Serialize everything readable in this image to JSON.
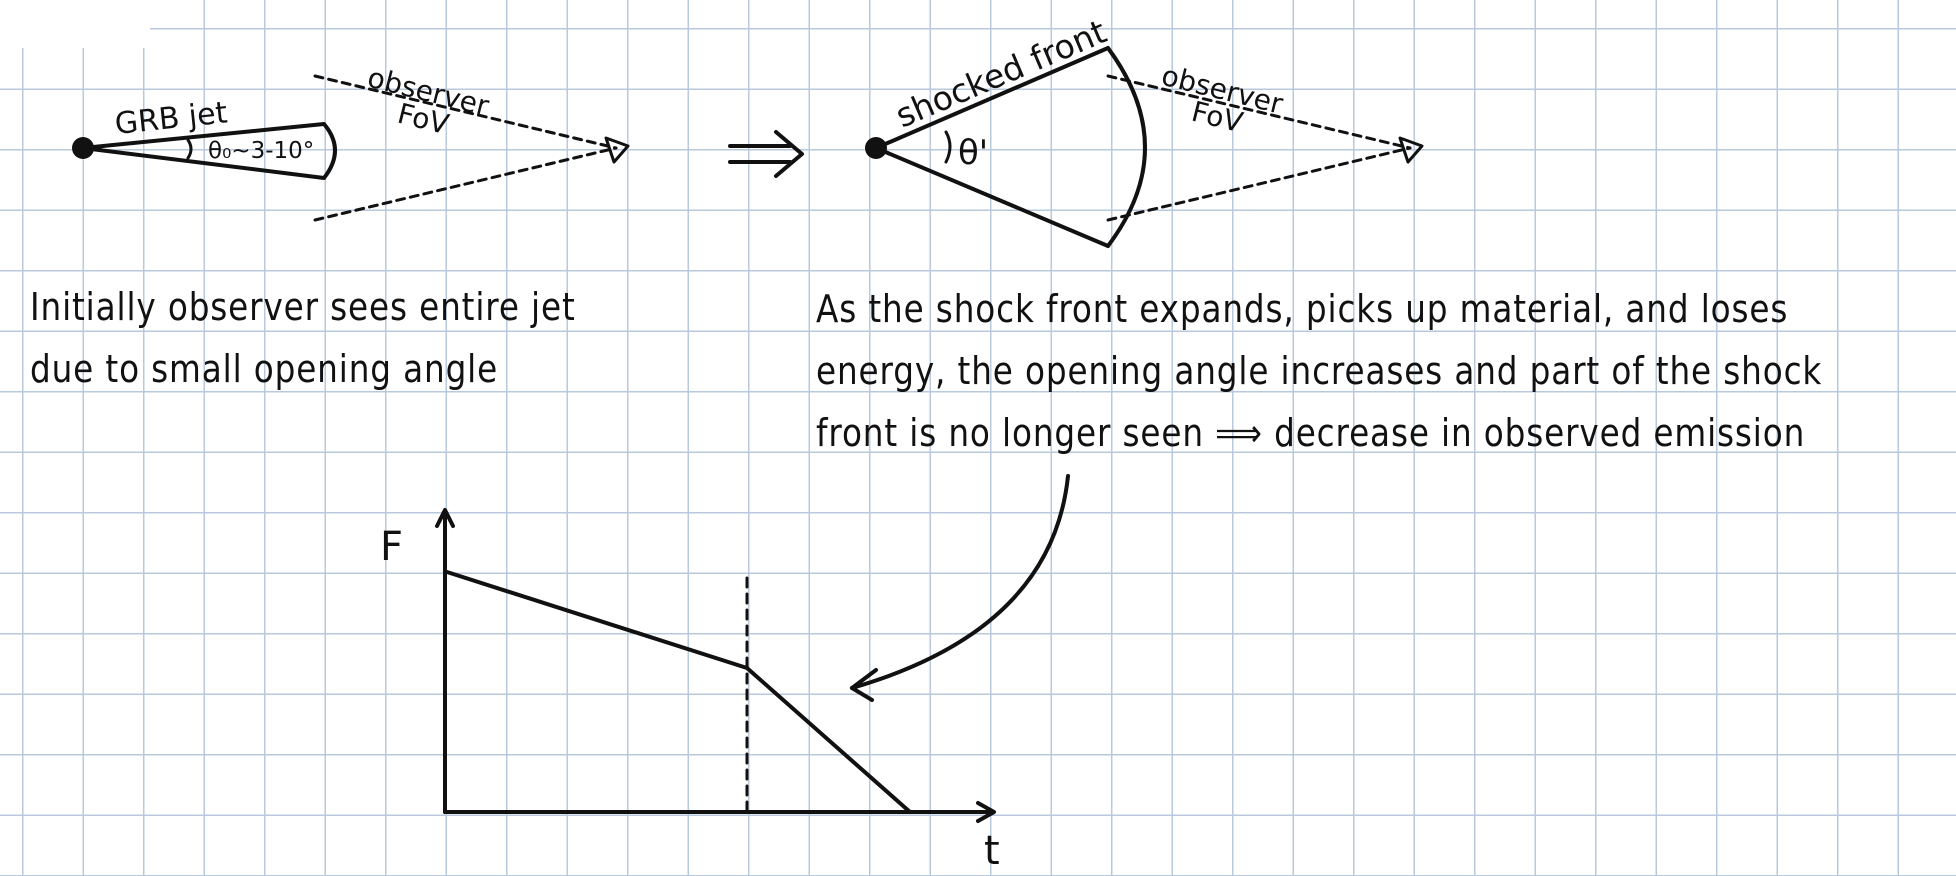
{
  "diagram": {
    "left_panel": {
      "jet_label": "GRB jet",
      "angle_label": "θ₀~3-10°",
      "fov_label_line1": "observer",
      "fov_label_line2": "FoV"
    },
    "arrow_symbol": "⟹",
    "right_panel": {
      "front_label": "shocked front",
      "angle_label": "θ'",
      "fov_label_line1": "observer",
      "fov_label_line2": "FoV"
    }
  },
  "notes": {
    "left": [
      "Initially observer sees entire jet",
      "due to small opening angle"
    ],
    "right": [
      "As the shock front expands, picks up material, and loses",
      "energy, the opening angle increases and part of the shock",
      "front is no longer seen ⟹ decrease in observed emission"
    ]
  },
  "graph": {
    "y_axis_label": "F",
    "x_axis_label": "t"
  },
  "colors": {
    "ink": "#111111",
    "grid": "#b8c9de",
    "paper": "#ffffff"
  }
}
